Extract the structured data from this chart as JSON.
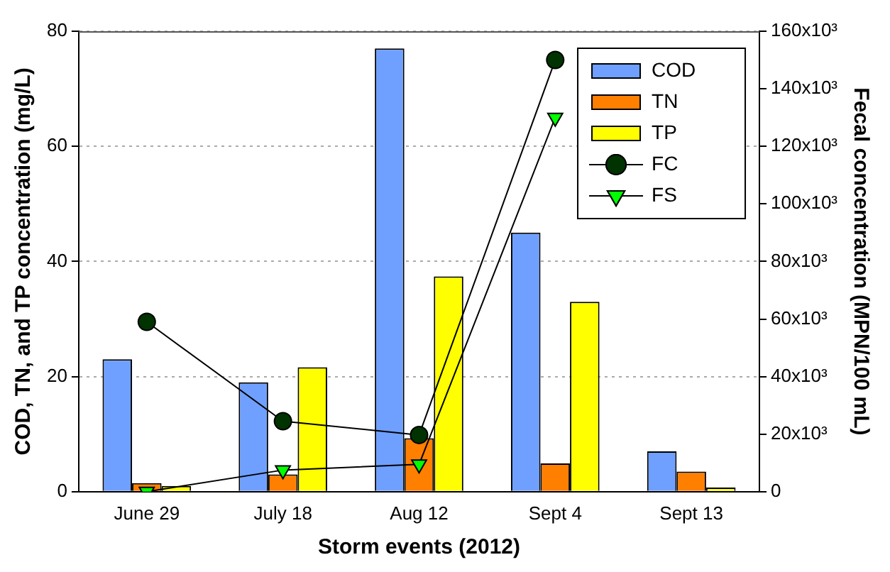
{
  "chart_data": {
    "type": "bar",
    "categories": [
      "June 29",
      "July 18",
      "Aug 12",
      "Sept 4",
      "Sept 13"
    ],
    "xlabel": "Storm events (2012)",
    "ylabel": "COD, TN, and TP concentration (mg/L)",
    "y2label": "Fecal concentration (MPN/100 mL)",
    "series": [
      {
        "name": "COD",
        "color": "#6fa0ff",
        "values": [
          23,
          19,
          77,
          45,
          7
        ]
      },
      {
        "name": "TN",
        "color": "#ff7f00",
        "values": [
          1.5,
          3,
          9.3,
          4.9,
          3.5
        ]
      },
      {
        "name": "TP",
        "color": "#ffff00",
        "values": [
          1,
          21.6,
          37.4,
          33,
          0.7
        ]
      },
      {
        "name": "FC",
        "type": "line",
        "axis": "y2",
        "marker": "circle",
        "color": "#003300",
        "values": [
          59000,
          24500,
          19700,
          150000,
          null
        ]
      },
      {
        "name": "FS",
        "type": "line",
        "axis": "y2",
        "marker": "triangle",
        "color": "#00ff00",
        "values": [
          0,
          7500,
          9500,
          130000,
          null
        ]
      }
    ],
    "ylim": [
      0,
      80
    ],
    "yticks": [
      0,
      20,
      40,
      60,
      80
    ],
    "y2lim": [
      0,
      160000
    ],
    "y2ticks": [
      0,
      {
        "value": 20000,
        "label": "20x10³"
      },
      {
        "value": 40000,
        "label": "40x10³"
      },
      {
        "value": 60000,
        "label": "60x10³"
      },
      {
        "value": 80000,
        "label": "80x10³"
      },
      {
        "value": 100000,
        "label": "100x10³"
      },
      {
        "value": 120000,
        "label": "120x10³"
      },
      {
        "value": 140000,
        "label": "140x10³"
      },
      {
        "value": 160000,
        "label": "160x10³"
      }
    ],
    "grid": "y",
    "legend": "top right",
    "line_style": "solid"
  }
}
